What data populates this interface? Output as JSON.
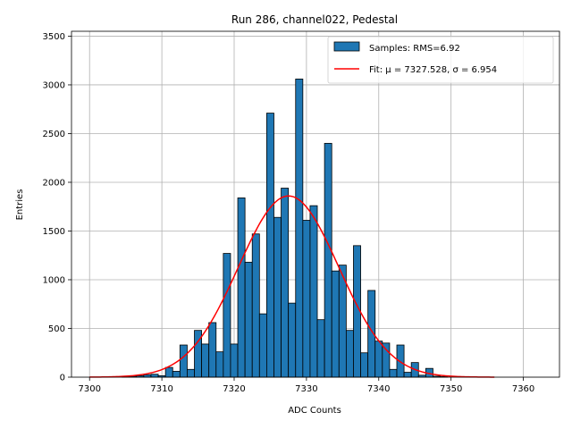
{
  "chart_data": {
    "type": "bar",
    "title": "Run 286, channel022, Pedestal",
    "xlabel": "ADC Counts",
    "ylabel": "Entries",
    "xlim": [
      7297.5,
      7365
    ],
    "ylim": [
      0,
      3550
    ],
    "x_ticks": [
      7300,
      7310,
      7320,
      7330,
      7340,
      7350,
      7360
    ],
    "y_ticks": [
      0,
      500,
      1000,
      1500,
      2000,
      2500,
      3000,
      3500
    ],
    "grid": true,
    "legend_position": "top-right",
    "bin_width": 1,
    "bin_centers": [
      7305,
      7306,
      7307,
      7308,
      7309,
      7310,
      7311,
      7312,
      7313,
      7314,
      7315,
      7316,
      7317,
      7318,
      7319,
      7320,
      7321,
      7322,
      7323,
      7324,
      7325,
      7326,
      7327,
      7328,
      7329,
      7330,
      7331,
      7332,
      7333,
      7334,
      7335,
      7336,
      7337,
      7338,
      7339,
      7340,
      7341,
      7342,
      7343,
      7344,
      7345,
      7346,
      7347,
      7348,
      7349
    ],
    "series": [
      {
        "name": "Samples: RMS=6.92",
        "type": "histogram",
        "color": "#1f77b4",
        "edgecolor": "#000000",
        "values": [
          5,
          10,
          15,
          25,
          30,
          15,
          100,
          60,
          330,
          80,
          480,
          340,
          560,
          260,
          1270,
          340,
          1840,
          1180,
          1470,
          650,
          2710,
          1640,
          1940,
          760,
          3060,
          1610,
          1760,
          590,
          2400,
          1090,
          1150,
          480,
          1350,
          250,
          890,
          370,
          350,
          80,
          330,
          50,
          150,
          20,
          90,
          10,
          5
        ]
      },
      {
        "name": "Fit: μ = 7327.528, σ = 6.954",
        "type": "line",
        "color": "#ff0000",
        "gauss": {
          "amplitude": 1860,
          "mu": 7327.528,
          "sigma": 6.954,
          "x_range": [
            7300,
            7356
          ]
        }
      }
    ]
  },
  "legend": {
    "samples_label": "Samples: RMS=6.92",
    "fit_label": "Fit: μ = 7327.528, σ = 6.954"
  }
}
